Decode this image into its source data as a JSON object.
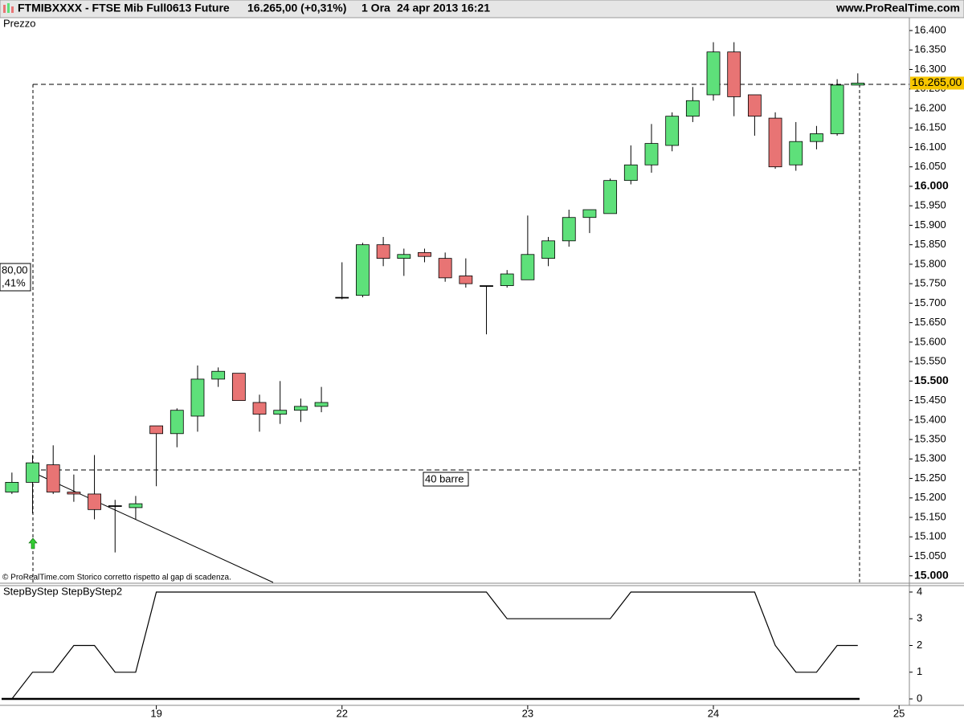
{
  "header": {
    "symbol": "FTMIBXXXX - FTSE Mib Full0613 Future",
    "quote": "16.265,00 (+0,31%)",
    "timeframe": "1 Ora",
    "datetime": "24 apr 2013 16:21",
    "site": "www.ProRealTime.com"
  },
  "chart_data": [
    {
      "type": "candlestick",
      "title": "Prezzo",
      "open": [
        15215,
        15240,
        15285,
        15215,
        15210,
        15180,
        15175,
        15385,
        15365,
        15410,
        15505,
        15520,
        15445,
        15415,
        15425,
        15435,
        15715,
        15720,
        15850,
        15815,
        15830,
        15815,
        15770,
        15745,
        15745,
        15760,
        15815,
        15860,
        15920,
        15930,
        16015,
        16055,
        16105,
        16180,
        16235,
        16345,
        16235,
        16175,
        16055,
        16115,
        16135,
        16260,
        null,
        null
      ],
      "high": [
        15265,
        15310,
        15335,
        15260,
        15310,
        15195,
        15205,
        15385,
        15430,
        15540,
        15535,
        15520,
        15465,
        15500,
        15455,
        15485,
        15805,
        15855,
        15870,
        15840,
        15840,
        15830,
        15815,
        15745,
        15785,
        15925,
        15870,
        15940,
        15940,
        16020,
        16105,
        16160,
        16190,
        16255,
        16370,
        16370,
        16235,
        16190,
        16165,
        16155,
        16275,
        16290,
        null,
        null
      ],
      "low": [
        15210,
        15160,
        15210,
        15190,
        15145,
        15060,
        15145,
        15230,
        15330,
        15370,
        15485,
        15450,
        15370,
        15390,
        15395,
        15420,
        15710,
        15715,
        15795,
        15770,
        15805,
        15755,
        15740,
        15620,
        15740,
        15760,
        15795,
        15845,
        15880,
        15930,
        16005,
        16035,
        16090,
        16165,
        16220,
        16180,
        16130,
        16045,
        16040,
        16095,
        16130,
        16260,
        null,
        null
      ],
      "close": [
        15240,
        15290,
        15215,
        15210,
        15170,
        15180,
        15185,
        15365,
        15425,
        15505,
        15525,
        15450,
        15415,
        15425,
        15435,
        15445,
        15715,
        15850,
        15815,
        15825,
        15820,
        15765,
        15750,
        15745,
        15775,
        15825,
        15860,
        15920,
        15940,
        16015,
        16055,
        16110,
        16180,
        16220,
        16345,
        16230,
        16180,
        16050,
        16115,
        16135,
        16260,
        16265,
        null,
        null
      ],
      "up_color": "#5ee07a",
      "down_color": "#e87474",
      "ylim": [
        14983,
        16433
      ],
      "yticks": [
        {
          "value": 15000,
          "label": "15.000"
        },
        {
          "value": 15050,
          "label": "15.050"
        },
        {
          "value": 15100,
          "label": "15.100"
        },
        {
          "value": 15150,
          "label": "15.150"
        },
        {
          "value": 15200,
          "label": "15.200"
        },
        {
          "value": 15250,
          "label": "15.250"
        },
        {
          "value": 15300,
          "label": "15.300"
        },
        {
          "value": 15350,
          "label": "15.350"
        },
        {
          "value": 15400,
          "label": "15.400"
        },
        {
          "value": 15450,
          "label": "15.450"
        },
        {
          "value": 15500,
          "label": "15.500"
        },
        {
          "value": 15550,
          "label": "15.550"
        },
        {
          "value": 15600,
          "label": "15.600"
        },
        {
          "value": 15650,
          "label": "15.650"
        },
        {
          "value": 15700,
          "label": "15.700"
        },
        {
          "value": 15750,
          "label": "15.750"
        },
        {
          "value": 15800,
          "label": "15.800"
        },
        {
          "value": 15850,
          "label": "15.850"
        },
        {
          "value": 15900,
          "label": "15.900"
        },
        {
          "value": 15950,
          "label": "15.950"
        },
        {
          "value": 16000,
          "label": "16.000"
        },
        {
          "value": 16050,
          "label": "16.050"
        },
        {
          "value": 16100,
          "label": "16.100"
        },
        {
          "value": 16150,
          "label": "16.150"
        },
        {
          "value": 16200,
          "label": "16.200"
        },
        {
          "value": 16250,
          "label": "16.250"
        },
        {
          "value": 16300,
          "label": "16.300"
        },
        {
          "value": 16350,
          "label": "16.350"
        },
        {
          "value": 16400,
          "label": "16.400"
        }
      ],
      "last_price": {
        "value": 16265,
        "label": "16.265,00"
      },
      "annotations": [
        "80,00",
        ",41%",
        "40 barre"
      ],
      "footnote": "© ProRealTime.com  Storico corretto rispetto al gap di scadenza."
    },
    {
      "type": "line",
      "title": "StepByStep StepByStep2",
      "categories": [
        null,
        null,
        null,
        null,
        null,
        null,
        null,
        "19",
        null,
        null,
        null,
        null,
        null,
        null,
        null,
        null,
        "22",
        null,
        null,
        null,
        null,
        null,
        null,
        null,
        null,
        "23",
        null,
        null,
        null,
        null,
        null,
        null,
        null,
        null,
        "24",
        null,
        null,
        null,
        null,
        null,
        null,
        null,
        null,
        "25"
      ],
      "values": [
        0,
        1,
        1,
        2,
        2,
        1,
        1,
        4,
        4,
        4,
        4,
        4,
        4,
        4,
        4,
        4,
        4,
        4,
        4,
        4,
        4,
        4,
        4,
        4,
        3,
        3,
        3,
        3,
        3,
        3,
        4,
        4,
        4,
        4,
        4,
        4,
        4,
        2,
        1,
        1,
        2,
        2,
        null,
        null
      ],
      "color": "#000000",
      "ylim": [
        -0.24,
        4.27
      ],
      "yticks": [
        0,
        1,
        2,
        3,
        4
      ]
    }
  ]
}
